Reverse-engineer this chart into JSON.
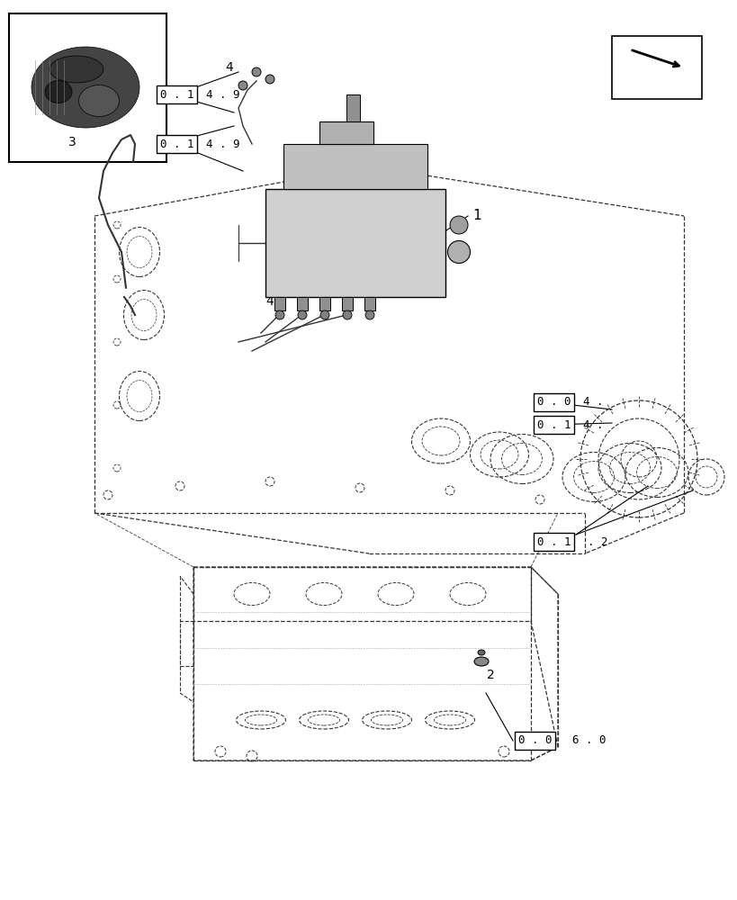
{
  "bg_color": "#ffffff",
  "line_color": "#000000",
  "dashed_color": "#555555",
  "title": "",
  "labels": {
    "box1": "0 . 0",
    "suffix1": "6 . 0",
    "box2": "0 . 1",
    "suffix2": ". 2",
    "box3": "0 . 1",
    "suffix3": "4 .",
    "box4": "0 . 0",
    "suffix4": "4 .",
    "box5": "0 . 1",
    "suffix5": "4 . 9",
    "box6": "0 . 1",
    "suffix6": "4 . 9",
    "num1": "2",
    "num2": "1",
    "num3": "3",
    "num4a": "4",
    "num4b": "4"
  },
  "figsize": [
    8.2,
    10.0
  ],
  "dpi": 100
}
